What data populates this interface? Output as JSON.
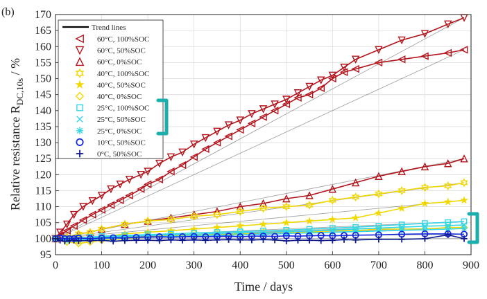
{
  "chart_data": {
    "type": "line",
    "panel_label": "(b)",
    "xlabel": "Time / days",
    "ylabel_main": "Relative resistance R",
    "ylabel_sub": "DC,10s",
    "ylabel_unit": " / %",
    "xlim": [
      0,
      900
    ],
    "ylim": [
      95,
      170
    ],
    "xticks": [
      0,
      100,
      200,
      300,
      400,
      500,
      600,
      700,
      800,
      900
    ],
    "yticks": [
      95,
      100,
      105,
      110,
      115,
      120,
      125,
      130,
      135,
      140,
      145,
      150,
      155,
      160,
      165,
      170
    ],
    "grid": true,
    "legend_position": "top-left",
    "legend_title": "Trend lines",
    "series": [
      {
        "name": "60°C, 100%SOC",
        "marker": "triangle-left",
        "color": "#b3141c",
        "x": [
          0,
          10,
          25,
          40,
          60,
          80,
          100,
          120,
          140,
          160,
          185,
          200,
          225,
          250,
          275,
          300,
          325,
          350,
          375,
          400,
          425,
          450,
          475,
          500,
          525,
          550,
          575,
          600,
          625,
          650,
          700,
          750,
          800,
          850,
          885
        ],
        "y": [
          100,
          101,
          102.5,
          104,
          105.8,
          107.5,
          109,
          110.5,
          112,
          113.5,
          115.5,
          117,
          118.5,
          121,
          123,
          125.5,
          128,
          130,
          132,
          134,
          136,
          138,
          140,
          142,
          144,
          145,
          147,
          150,
          152,
          153,
          155,
          156,
          157,
          158,
          159
        ]
      },
      {
        "name": "60°C, 50%SOC",
        "marker": "triangle-down",
        "color": "#b3141c",
        "x": [
          0,
          10,
          25,
          40,
          60,
          80,
          100,
          120,
          140,
          160,
          185,
          200,
          225,
          250,
          275,
          300,
          325,
          350,
          375,
          400,
          425,
          450,
          475,
          500,
          525,
          550,
          575,
          600,
          625,
          650,
          700,
          750,
          800,
          850,
          885
        ],
        "y": [
          100,
          102,
          104.5,
          107.5,
          110,
          111.8,
          113.5,
          115.5,
          117,
          118.5,
          120,
          121,
          123.5,
          125.5,
          127,
          129.5,
          131.5,
          133.5,
          135.5,
          137,
          139,
          140.5,
          142,
          143.5,
          145.5,
          147.5,
          149.5,
          151,
          153.5,
          156,
          159,
          162,
          164,
          167,
          169
        ]
      },
      {
        "name": "60°C, 0%SOC",
        "marker": "triangle-up",
        "color": "#b3141c",
        "x": [
          0,
          25,
          50,
          75,
          100,
          150,
          200,
          250,
          300,
          350,
          400,
          450,
          500,
          550,
          600,
          650,
          700,
          750,
          800,
          850,
          885
        ],
        "y": [
          100,
          100.5,
          101.5,
          102,
          103,
          104.5,
          105.5,
          106.5,
          107.5,
          108.5,
          110,
          111,
          112.5,
          113.5,
          115.5,
          117.5,
          119.5,
          121,
          122.5,
          123.5,
          125
        ]
      },
      {
        "name": "40°C, 100%SOC",
        "marker": "hexagram",
        "color": "#f0d800",
        "x": [
          0,
          25,
          50,
          75,
          100,
          150,
          200,
          250,
          300,
          350,
          400,
          450,
          500,
          550,
          600,
          650,
          700,
          750,
          800,
          850,
          885
        ],
        "y": [
          100,
          100.5,
          101.5,
          102,
          103,
          104.5,
          105.5,
          106,
          107,
          107.5,
          108.5,
          109.5,
          110,
          110.5,
          112,
          113,
          114,
          115,
          116,
          116.5,
          117.5
        ]
      },
      {
        "name": "40°C, 50%SOC",
        "marker": "pentagram",
        "color": "#f0d800",
        "x": [
          0,
          25,
          50,
          75,
          100,
          150,
          200,
          250,
          300,
          350,
          400,
          450,
          500,
          550,
          600,
          650,
          700,
          750,
          800,
          850,
          885
        ],
        "y": [
          100,
          99.5,
          99.5,
          100,
          100.5,
          101.5,
          102,
          102.5,
          103,
          103.5,
          104,
          104.5,
          105,
          105.5,
          106,
          106.5,
          108,
          109.5,
          111,
          111.5,
          112
        ]
      },
      {
        "name": "40°C, 0%SOC",
        "marker": "diamond",
        "color": "#f0d800",
        "x": [
          0,
          25,
          50,
          75,
          100,
          150,
          200,
          250,
          300,
          350,
          400,
          450,
          500,
          550,
          600,
          650,
          700,
          750,
          800,
          850,
          885
        ],
        "y": [
          100,
          99,
          98.5,
          99,
          99.5,
          100,
          100.5,
          101,
          101,
          101.5,
          101.5,
          102,
          102,
          102,
          102.5,
          102.5,
          103,
          103,
          103,
          103.5,
          103.5
        ]
      },
      {
        "name": "25°C, 100%SOC",
        "marker": "square",
        "color": "#33d6e6",
        "x": [
          0,
          25,
          50,
          75,
          100,
          150,
          200,
          250,
          300,
          350,
          400,
          450,
          500,
          550,
          600,
          650,
          700,
          750,
          800,
          850,
          885
        ],
        "y": [
          100,
          100,
          100.3,
          100.5,
          100.8,
          101,
          101.3,
          101.5,
          101.8,
          102,
          102.2,
          102.5,
          102.7,
          103,
          103.3,
          103.6,
          104,
          104.4,
          104.8,
          105.1,
          105.4
        ]
      },
      {
        "name": "25°C, 50%SOC",
        "marker": "x",
        "color": "#33d6e6",
        "x": [
          0,
          25,
          50,
          75,
          100,
          150,
          200,
          250,
          300,
          350,
          400,
          450,
          500,
          550,
          600,
          650,
          700,
          750,
          800,
          850,
          885
        ],
        "y": [
          100,
          99.8,
          100,
          100.2,
          100.4,
          100.7,
          101,
          101.2,
          101.4,
          101.6,
          101.8,
          102,
          102.2,
          102.4,
          102.7,
          103,
          103.3,
          103.6,
          103.9,
          104.1,
          104.3
        ]
      },
      {
        "name": "25°C, 0%SOC",
        "marker": "asterisk",
        "color": "#33d6e6",
        "x": [
          0,
          25,
          50,
          75,
          100,
          150,
          200,
          250,
          300,
          350,
          400,
          450,
          500,
          550,
          600,
          650,
          700,
          750,
          800,
          850,
          885
        ],
        "y": [
          100,
          99.5,
          99.6,
          99.8,
          100,
          100.2,
          100.5,
          100.7,
          100.9,
          101,
          101.2,
          101.4,
          101.6,
          101.8,
          102,
          102.2,
          102.4,
          102.6,
          102.8,
          103,
          103.2
        ]
      },
      {
        "name": "10°C, 50%SOC",
        "marker": "circle",
        "color": "#1428e0",
        "x": [
          0,
          10,
          20,
          30,
          40,
          50,
          75,
          100,
          125,
          150,
          175,
          200,
          225,
          250,
          275,
          300,
          325,
          350,
          375,
          400,
          425,
          450,
          475,
          500,
          525,
          550,
          575,
          600,
          625,
          650,
          700,
          750,
          800,
          850,
          885
        ],
        "y": [
          100,
          100.2,
          100,
          100,
          100,
          100.2,
          100,
          100.2,
          100.3,
          100.2,
          100.4,
          100.5,
          100.6,
          100.5,
          100.6,
          100.7,
          100.6,
          100.7,
          100.8,
          100.6,
          100.8,
          100.8,
          100.7,
          100.9,
          100.8,
          100.9,
          101,
          100.9,
          101,
          101.1,
          101.2,
          101.4,
          101.5,
          101.5,
          101.4
        ]
      },
      {
        "name": "0°C, 50%SOC",
        "marker": "plus",
        "color": "#0d1a8c",
        "x": [
          0,
          10,
          20,
          30,
          40,
          50,
          75,
          100,
          125,
          150,
          175,
          200,
          225,
          250,
          275,
          300,
          325,
          350,
          375,
          400,
          425,
          450,
          475,
          500,
          525,
          550,
          575,
          600,
          625,
          650,
          700,
          750,
          800,
          850,
          885
        ],
        "y": [
          100,
          99.5,
          99.2,
          99.4,
          99.5,
          99.3,
          99.4,
          99.5,
          99.2,
          99.4,
          99.5,
          99.5,
          99.4,
          99.6,
          99.5,
          99.6,
          99.5,
          99.6,
          99.7,
          99.6,
          99.6,
          99.7,
          99.6,
          99.3,
          99.5,
          99.5,
          99.4,
          99.5,
          99.7,
          99.6,
          99.8,
          99.8,
          100,
          101.2,
          100
        ]
      }
    ],
    "trend_lines": [
      {
        "name": "60°C, 100%SOC",
        "x": [
          0,
          885
        ],
        "y": [
          100,
          159
        ]
      },
      {
        "name": "60°C, 50%SOC",
        "x": [
          0,
          885
        ],
        "y": [
          100,
          169
        ]
      },
      {
        "name": "60°C, 0%SOC",
        "x": [
          0,
          885
        ],
        "y": [
          100,
          125
        ]
      },
      {
        "name": "40°C, 100%SOC",
        "x": [
          0,
          885
        ],
        "y": [
          100,
          117.5
        ]
      },
      {
        "name": "40°C, 50%SOC",
        "x": [
          0,
          885
        ],
        "y": [
          100,
          112
        ]
      },
      {
        "name": "40°C, 0%SOC",
        "x": [
          0,
          885
        ],
        "y": [
          100,
          103.5
        ]
      },
      {
        "name": "25°C, 100%SOC",
        "x": [
          0,
          885
        ],
        "y": [
          100,
          105.4
        ]
      },
      {
        "name": "25°C, 50%SOC",
        "x": [
          0,
          885
        ],
        "y": [
          100,
          104.3
        ]
      },
      {
        "name": "25°C, 0%SOC",
        "x": [
          0,
          885
        ],
        "y": [
          100,
          103.2
        ]
      },
      {
        "name": "10°C, 50%SOC",
        "x": [
          0,
          885
        ],
        "y": [
          100,
          101.4
        ]
      },
      {
        "name": "0°C, 50%SOC",
        "x": [
          0,
          885
        ],
        "y": [
          100,
          100
        ]
      }
    ],
    "brackets": [
      {
        "name": "legend-low-temperature-group",
        "color": "#1aaead"
      },
      {
        "name": "curves-low-temperature-group",
        "color": "#1aaead"
      }
    ]
  }
}
